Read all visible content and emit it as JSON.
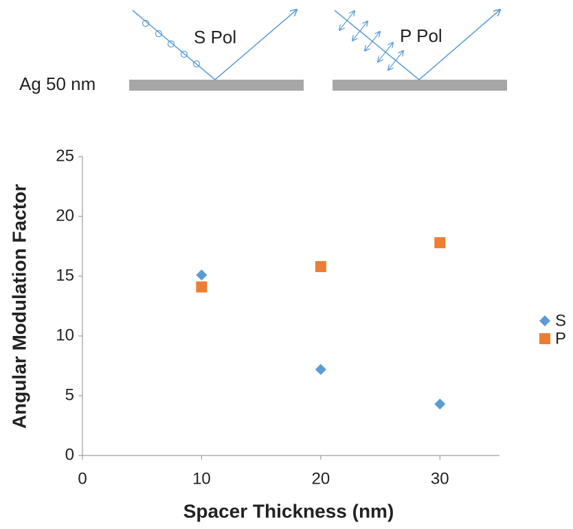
{
  "diagram": {
    "substrate_label": "Ag 50 nm",
    "s_label": "S Pol",
    "p_label": "P Pol"
  },
  "chart_data": {
    "type": "scatter",
    "x_label": "Spacer Thickness (nm)",
    "y_label": "Angular Modulation Factor",
    "series": [
      {
        "name": "S",
        "color": "#5b9bd5",
        "marker": "diamond",
        "x": [
          10,
          20,
          30
        ],
        "values": [
          15.1,
          7.2,
          4.3
        ]
      },
      {
        "name": "P",
        "color": "#ed7d31",
        "marker": "square",
        "x": [
          10,
          20,
          30
        ],
        "values": [
          14.1,
          15.8,
          17.8
        ]
      }
    ],
    "xlim": [
      0,
      35
    ],
    "xticks": [
      0,
      10,
      20,
      30
    ],
    "ylim": [
      0,
      25
    ],
    "yticks": [
      0,
      5,
      10,
      15,
      20,
      25
    ],
    "grid": false,
    "legend": "right"
  }
}
